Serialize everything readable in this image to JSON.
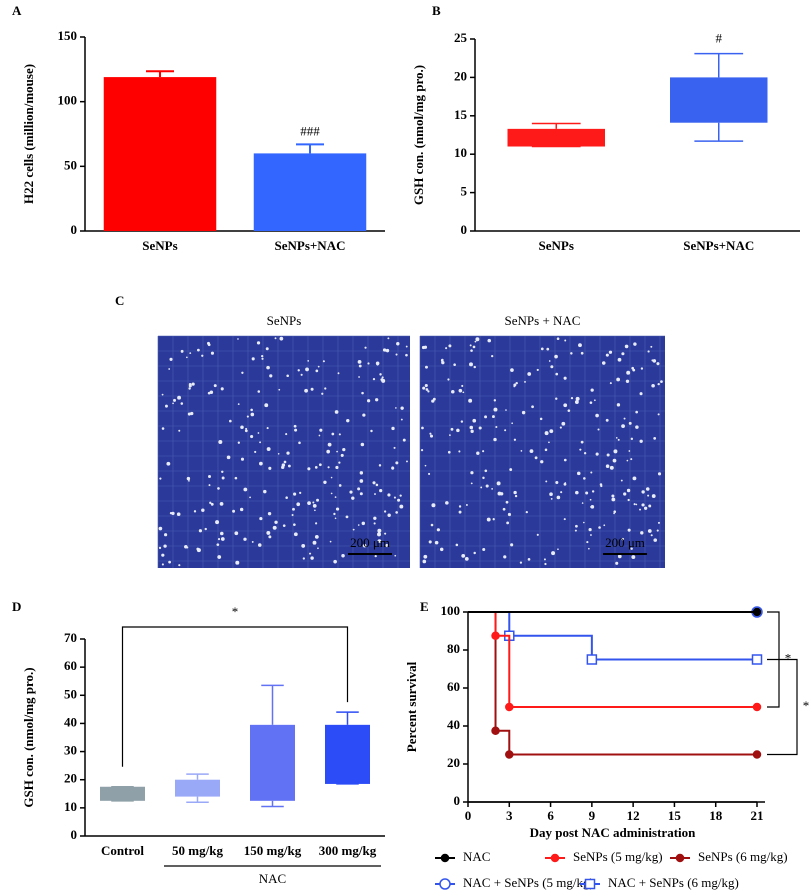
{
  "chart_data": [
    {
      "type": "bar",
      "label": "A",
      "ylabel": "H22 cells (million/mouse)",
      "categories": [
        "SeNPs",
        "SeNPs+NAC"
      ],
      "values": [
        119,
        60
      ],
      "errors": [
        4.5,
        7
      ],
      "colors": [
        "#ff0000",
        "#3366ff"
      ],
      "ylim": [
        0,
        150
      ],
      "yticks": [
        0,
        50,
        100,
        150
      ],
      "annotations": [
        {
          "text": "###",
          "category": "SeNPs+NAC"
        }
      ]
    },
    {
      "type": "box",
      "label": "B",
      "ylabel": "GSH con. (nmol/mg pro.)",
      "categories": [
        "SeNPs",
        "SeNPs+NAC"
      ],
      "boxes": [
        {
          "min": 11,
          "q1": 11,
          "q3": 13.3,
          "max": 14
        },
        {
          "min": 11.7,
          "q1": 14.1,
          "q3": 20,
          "max": 23.1
        }
      ],
      "colors": [
        "#ff1a1a",
        "#3a62f0"
      ],
      "ylim": [
        0,
        25
      ],
      "yticks": [
        0,
        5,
        10,
        15,
        20,
        25
      ],
      "annotations": [
        {
          "text": "#",
          "category": "SeNPs+NAC"
        }
      ]
    },
    {
      "type": "image",
      "label": "C",
      "images": [
        {
          "title": "SeNPs",
          "scale_bar": "200 μm"
        },
        {
          "title": "SeNPs + NAC",
          "scale_bar": "200 μm"
        }
      ]
    },
    {
      "type": "box",
      "label": "D",
      "ylabel": "GSH con. (nmol/mg pro.)",
      "categories": [
        "Control",
        "50 mg/kg",
        "150 mg/kg",
        "300 mg/kg"
      ],
      "boxes": [
        {
          "min": 12.5,
          "q1": 12.5,
          "q3": 17.5,
          "max": 17.5
        },
        {
          "min": 12,
          "q1": 14,
          "q3": 20,
          "max": 22
        },
        {
          "min": 10.5,
          "q1": 12.5,
          "q3": 39.5,
          "max": 53.5
        },
        {
          "min": 18.5,
          "q1": 18.5,
          "q3": 39.5,
          "max": 44
        }
      ],
      "colors": [
        "#8fa0a8",
        "#9aa8f8",
        "#6272f5",
        "#2b4cf6"
      ],
      "ylim": [
        0,
        70
      ],
      "yticks": [
        0,
        10,
        20,
        30,
        40,
        50,
        60,
        70
      ],
      "group": {
        "label": "NAC",
        "from": "50 mg/kg",
        "to": "300 mg/kg"
      },
      "significance": [
        {
          "text": "*",
          "from": "Control",
          "to": "300 mg/kg"
        }
      ]
    },
    {
      "type": "step",
      "label": "E",
      "xlabel": "Day post NAC administration",
      "ylabel": "Percent survival",
      "xlim": [
        0,
        21
      ],
      "xticks": [
        0,
        3,
        6,
        9,
        12,
        15,
        18,
        21
      ],
      "ylim": [
        0,
        100
      ],
      "yticks": [
        0,
        20,
        40,
        60,
        80,
        100
      ],
      "series": [
        {
          "name": "NAC",
          "color": "#000000",
          "marker": "circle",
          "filled": true,
          "x": [
            0,
            21
          ],
          "values": [
            100,
            100
          ]
        },
        {
          "name": "SeNPs (5 mg/kg)",
          "color": "#ff1a1a",
          "marker": "circle",
          "filled": true,
          "x": [
            0,
            2,
            3,
            21
          ],
          "values": [
            100,
            87.5,
            50,
            50
          ]
        },
        {
          "name": "SeNPs (6 mg/kg)",
          "color": "#a01010",
          "marker": "circle",
          "filled": true,
          "x": [
            0,
            2,
            3,
            21
          ],
          "values": [
            100,
            37.5,
            25,
            25
          ]
        },
        {
          "name": "NAC + SeNPs (5 mg/kg)",
          "color": "#3355ee",
          "marker": "circle",
          "filled": false,
          "x": [
            0,
            21
          ],
          "values": [
            100,
            100
          ]
        },
        {
          "name": "NAC + SeNPs (6 mg/kg)",
          "color": "#3355ee",
          "marker": "square",
          "filled": false,
          "x": [
            0,
            3,
            9,
            21
          ],
          "values": [
            100,
            87.5,
            75,
            75
          ]
        }
      ],
      "significance": [
        {
          "text": "*",
          "from": "NAC + SeNPs (5 mg/kg)",
          "to": "SeNPs (5 mg/kg)"
        },
        {
          "text": "*",
          "from": "NAC + SeNPs (6 mg/kg)",
          "to": "SeNPs (6 mg/kg)"
        }
      ]
    }
  ]
}
